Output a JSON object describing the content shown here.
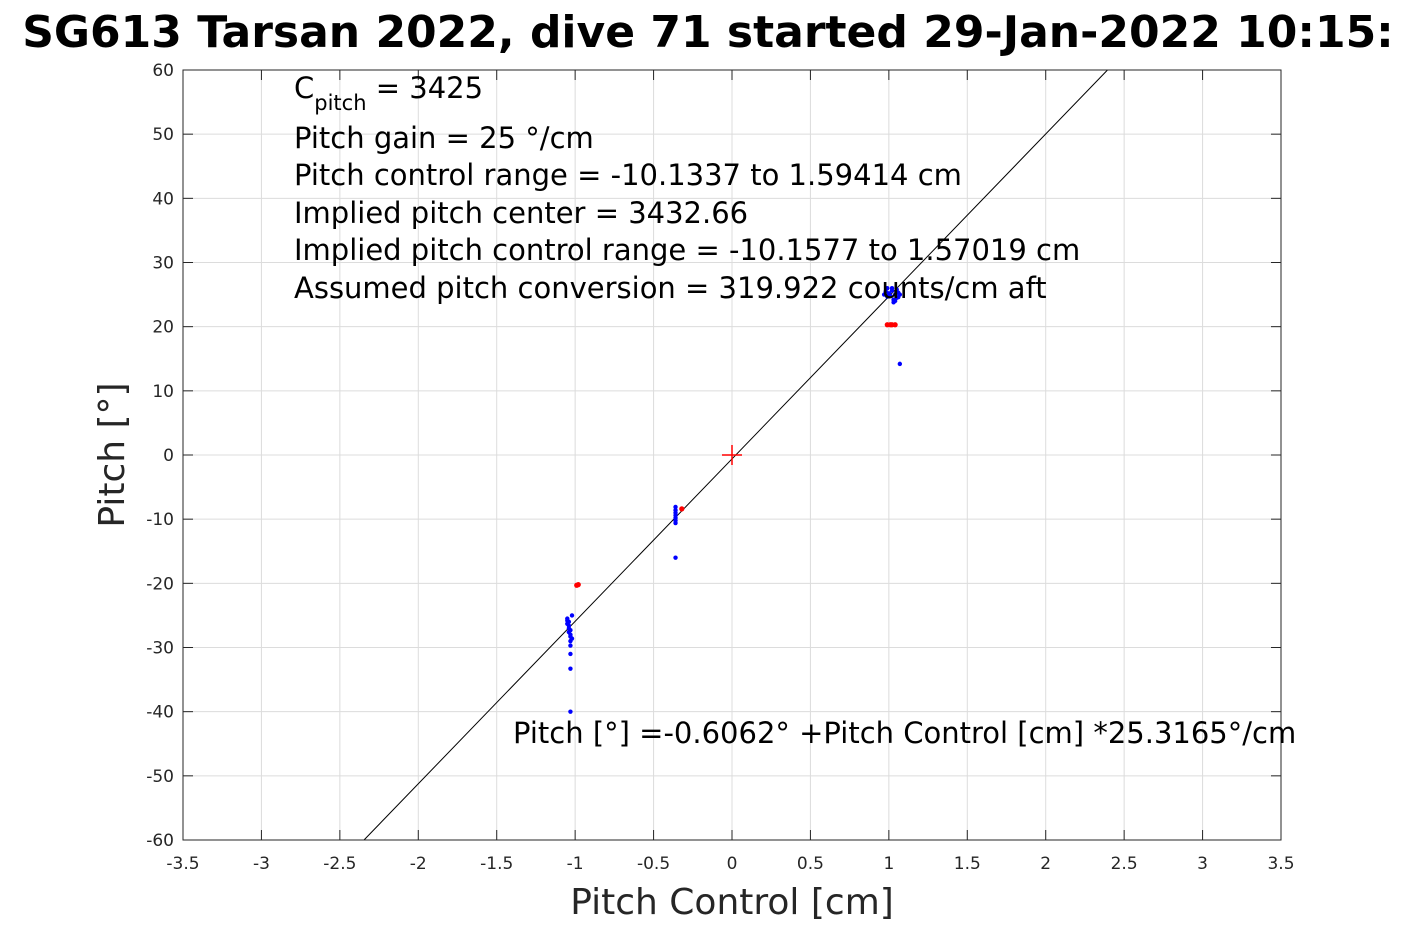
{
  "chart_data": {
    "type": "scatter",
    "title": "SG613 Tarsan 2022, dive 71 started 29-Jan-2022 10:15:",
    "xlabel": "Pitch Control [cm]",
    "ylabel": "Pitch [°]",
    "xlim": [
      -3.5,
      3.5
    ],
    "ylim": [
      -60,
      60
    ],
    "xticks": [
      -3.5,
      -3,
      -2.5,
      -2,
      -1.5,
      -1,
      -0.5,
      0,
      0.5,
      1,
      1.5,
      2,
      2.5,
      3,
      3.5
    ],
    "yticks": [
      -60,
      -50,
      -40,
      -30,
      -20,
      -10,
      0,
      10,
      20,
      30,
      40,
      50,
      60
    ],
    "xtick_labels": [
      "-3.5",
      "-3",
      "-2.5",
      "-2",
      "-1.5",
      "-1",
      "-0.5",
      "0",
      "0.5",
      "1",
      "1.5",
      "2",
      "2.5",
      "3",
      "3.5"
    ],
    "ytick_labels": [
      "-60",
      "-50",
      "-40",
      "-30",
      "-20",
      "-10",
      "0",
      "10",
      "20",
      "30",
      "40",
      "50",
      "60"
    ],
    "grid": true,
    "colors": {
      "blue": "#0000ff",
      "red": "#ff0000",
      "line": "#000000",
      "grid": "#dcdcdc"
    },
    "annotations": {
      "c_pitch_symbol": "C",
      "c_pitch_subscript": "pitch",
      "c_pitch_value": " = 3425",
      "lines": [
        "Pitch gain = 25 °/cm",
        "Pitch control range = -10.1337 to 1.59414 cm",
        "Implied pitch center = 3432.66",
        "Implied pitch control range = -10.1577 to 1.57019 cm",
        "Assumed pitch conversion = 319.922 counts/cm aft"
      ],
      "fit_equation": "Pitch [°] =-0.6062° +Pitch Control [cm] *25.3165°/cm"
    },
    "fit_line": {
      "intercept": -0.6062,
      "slope": 25.3165
    },
    "center_marker": {
      "x": 0,
      "y": 0,
      "symbol": "+"
    },
    "series": [
      {
        "color": "blue",
        "points": [
          [
            -1.05,
            -25.8
          ],
          [
            -1.05,
            -26.3
          ],
          [
            -1.04,
            -26.6
          ],
          [
            -1.04,
            -27.0
          ],
          [
            -1.03,
            -27.3
          ],
          [
            -1.04,
            -27.6
          ],
          [
            -1.03,
            -28.0
          ],
          [
            -1.03,
            -28.3
          ],
          [
            -1.02,
            -28.6
          ],
          [
            -1.03,
            -29.0
          ],
          [
            -1.05,
            -25.5
          ],
          [
            -1.04,
            -26.0
          ],
          [
            -1.02,
            -25.0
          ],
          [
            -1.03,
            -29.7
          ],
          [
            -1.03,
            -31.0
          ],
          [
            -1.03,
            -33.3
          ],
          [
            -1.03,
            -40.0
          ],
          [
            -0.36,
            -8.1
          ],
          [
            -0.36,
            -8.6
          ],
          [
            -0.36,
            -9.0
          ],
          [
            -0.36,
            -9.4
          ],
          [
            -0.36,
            -9.8
          ],
          [
            -0.36,
            -10.2
          ],
          [
            -0.36,
            -10.6
          ],
          [
            -0.36,
            -16.0
          ],
          [
            0.97,
            25.0
          ],
          [
            0.98,
            25.5
          ],
          [
            0.99,
            26.0
          ],
          [
            1.0,
            25.2
          ],
          [
            1.01,
            24.8
          ],
          [
            1.02,
            25.6
          ],
          [
            1.03,
            24.2
          ],
          [
            1.03,
            23.8
          ],
          [
            1.04,
            25.0
          ],
          [
            1.05,
            24.5
          ],
          [
            1.05,
            25.8
          ],
          [
            1.06,
            25.3
          ],
          [
            1.06,
            24.6
          ],
          [
            1.07,
            25.0
          ],
          [
            1.02,
            26.0
          ],
          [
            0.99,
            24.7
          ],
          [
            1.04,
            24.0
          ],
          [
            1.07,
            14.2
          ]
        ]
      },
      {
        "color": "red",
        "points": [
          [
            -0.99,
            -20.3
          ],
          [
            -0.98,
            -20.2
          ],
          [
            -0.32,
            -8.4
          ],
          [
            0.99,
            20.3
          ],
          [
            1.01,
            20.3
          ],
          [
            1.02,
            20.3
          ],
          [
            1.04,
            20.3
          ]
        ]
      }
    ]
  }
}
